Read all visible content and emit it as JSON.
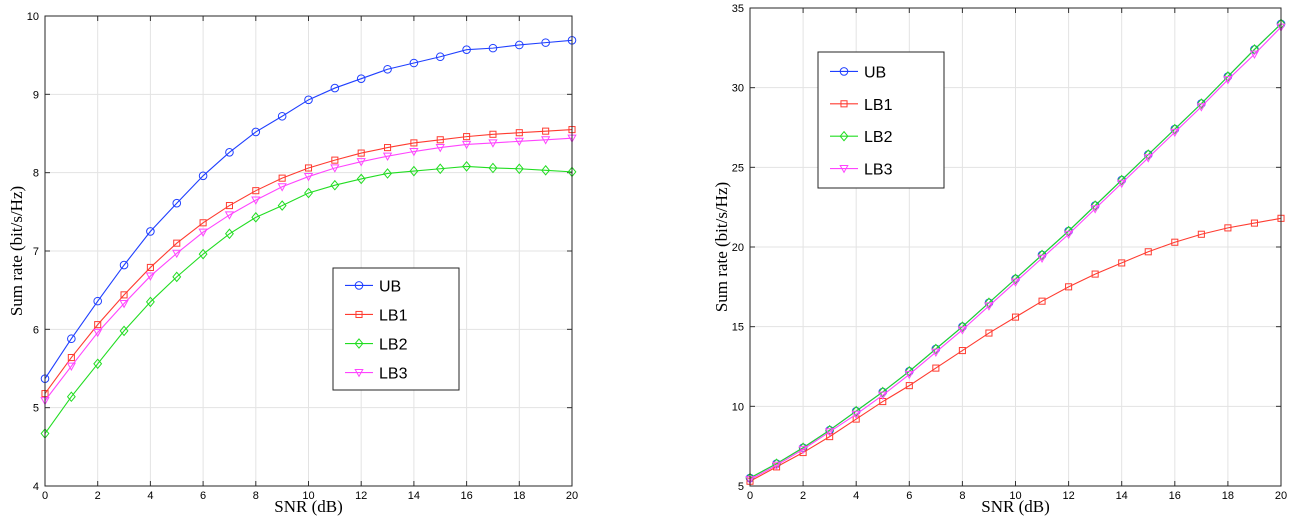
{
  "chart_data": [
    {
      "type": "line",
      "xlabel": "SNR (dB)",
      "ylabel": "Sum rate (bit/s/Hz)",
      "xlim": [
        0,
        20
      ],
      "ylim": [
        4,
        10
      ],
      "xticks": [
        0,
        2,
        4,
        6,
        8,
        10,
        12,
        14,
        16,
        18,
        20
      ],
      "yticks": [
        4,
        5,
        6,
        7,
        8,
        9,
        10
      ],
      "grid": true,
      "legend_position": "center-right",
      "x": [
        0,
        1,
        2,
        3,
        4,
        5,
        6,
        7,
        8,
        9,
        10,
        11,
        12,
        13,
        14,
        15,
        16,
        17,
        18,
        19,
        20
      ],
      "series": [
        {
          "name": "UB",
          "color": "#1f3fff",
          "marker": "circle",
          "values": [
            5.37,
            5.88,
            6.36,
            6.82,
            7.25,
            7.61,
            7.96,
            8.26,
            8.52,
            8.72,
            8.93,
            9.08,
            9.2,
            9.32,
            9.4,
            9.48,
            9.57,
            9.59,
            9.63,
            9.66,
            9.69
          ]
        },
        {
          "name": "LB1",
          "color": "#ff3b30",
          "marker": "square",
          "values": [
            5.18,
            5.64,
            6.06,
            6.44,
            6.79,
            7.1,
            7.36,
            7.58,
            7.77,
            7.93,
            8.06,
            8.16,
            8.25,
            8.32,
            8.38,
            8.42,
            8.46,
            8.49,
            8.51,
            8.53,
            8.55
          ]
        },
        {
          "name": "LB2",
          "color": "#22dd22",
          "marker": "diamond",
          "values": [
            4.67,
            5.14,
            5.56,
            5.98,
            6.35,
            6.67,
            6.96,
            7.22,
            7.43,
            7.58,
            7.74,
            7.84,
            7.92,
            7.99,
            8.02,
            8.05,
            8.08,
            8.06,
            8.05,
            8.03,
            8.01
          ]
        },
        {
          "name": "LB3",
          "color": "#ff44ff",
          "marker": "triangle-down",
          "values": [
            5.09,
            5.53,
            5.96,
            6.33,
            6.68,
            6.97,
            7.24,
            7.46,
            7.65,
            7.82,
            7.95,
            8.06,
            8.14,
            8.21,
            8.27,
            8.32,
            8.36,
            8.38,
            8.4,
            8.42,
            8.44
          ]
        }
      ]
    },
    {
      "type": "line",
      "xlabel": "SNR (dB)",
      "ylabel": "Sum rate (bit/s/Hz)",
      "xlim": [
        0,
        20
      ],
      "ylim": [
        5,
        35
      ],
      "xticks": [
        0,
        2,
        4,
        6,
        8,
        10,
        12,
        14,
        16,
        18,
        20
      ],
      "yticks": [
        5,
        10,
        15,
        20,
        25,
        30,
        35
      ],
      "grid": true,
      "legend_position": "top-left",
      "x": [
        0,
        1,
        2,
        3,
        4,
        5,
        6,
        7,
        8,
        9,
        10,
        11,
        12,
        13,
        14,
        15,
        16,
        17,
        18,
        19,
        20
      ],
      "series": [
        {
          "name": "UB",
          "color": "#1f3fff",
          "marker": "circle",
          "values": [
            5.5,
            6.4,
            7.4,
            8.5,
            9.7,
            10.9,
            12.2,
            13.6,
            15.0,
            16.5,
            18.0,
            19.5,
            21.0,
            22.6,
            24.2,
            25.8,
            27.4,
            29.0,
            30.7,
            32.4,
            34.0
          ]
        },
        {
          "name": "LB1",
          "color": "#ff3b30",
          "marker": "square",
          "values": [
            5.3,
            6.2,
            7.1,
            8.1,
            9.2,
            10.3,
            11.3,
            12.4,
            13.5,
            14.6,
            15.6,
            16.6,
            17.5,
            18.3,
            19.0,
            19.7,
            20.3,
            20.8,
            21.2,
            21.5,
            21.8
          ]
        },
        {
          "name": "LB2",
          "color": "#22dd22",
          "marker": "diamond",
          "values": [
            5.5,
            6.4,
            7.4,
            8.5,
            9.7,
            10.9,
            12.2,
            13.6,
            15.0,
            16.5,
            18.0,
            19.5,
            21.0,
            22.6,
            24.2,
            25.8,
            27.4,
            29.0,
            30.7,
            32.4,
            34.0
          ]
        },
        {
          "name": "LB3",
          "color": "#ff44ff",
          "marker": "triangle-down",
          "values": [
            5.4,
            6.3,
            7.3,
            8.4,
            9.5,
            10.7,
            12.0,
            13.4,
            14.8,
            16.3,
            17.8,
            19.3,
            20.8,
            22.4,
            24.0,
            25.6,
            27.2,
            28.8,
            30.5,
            32.1,
            33.8
          ]
        }
      ]
    }
  ]
}
